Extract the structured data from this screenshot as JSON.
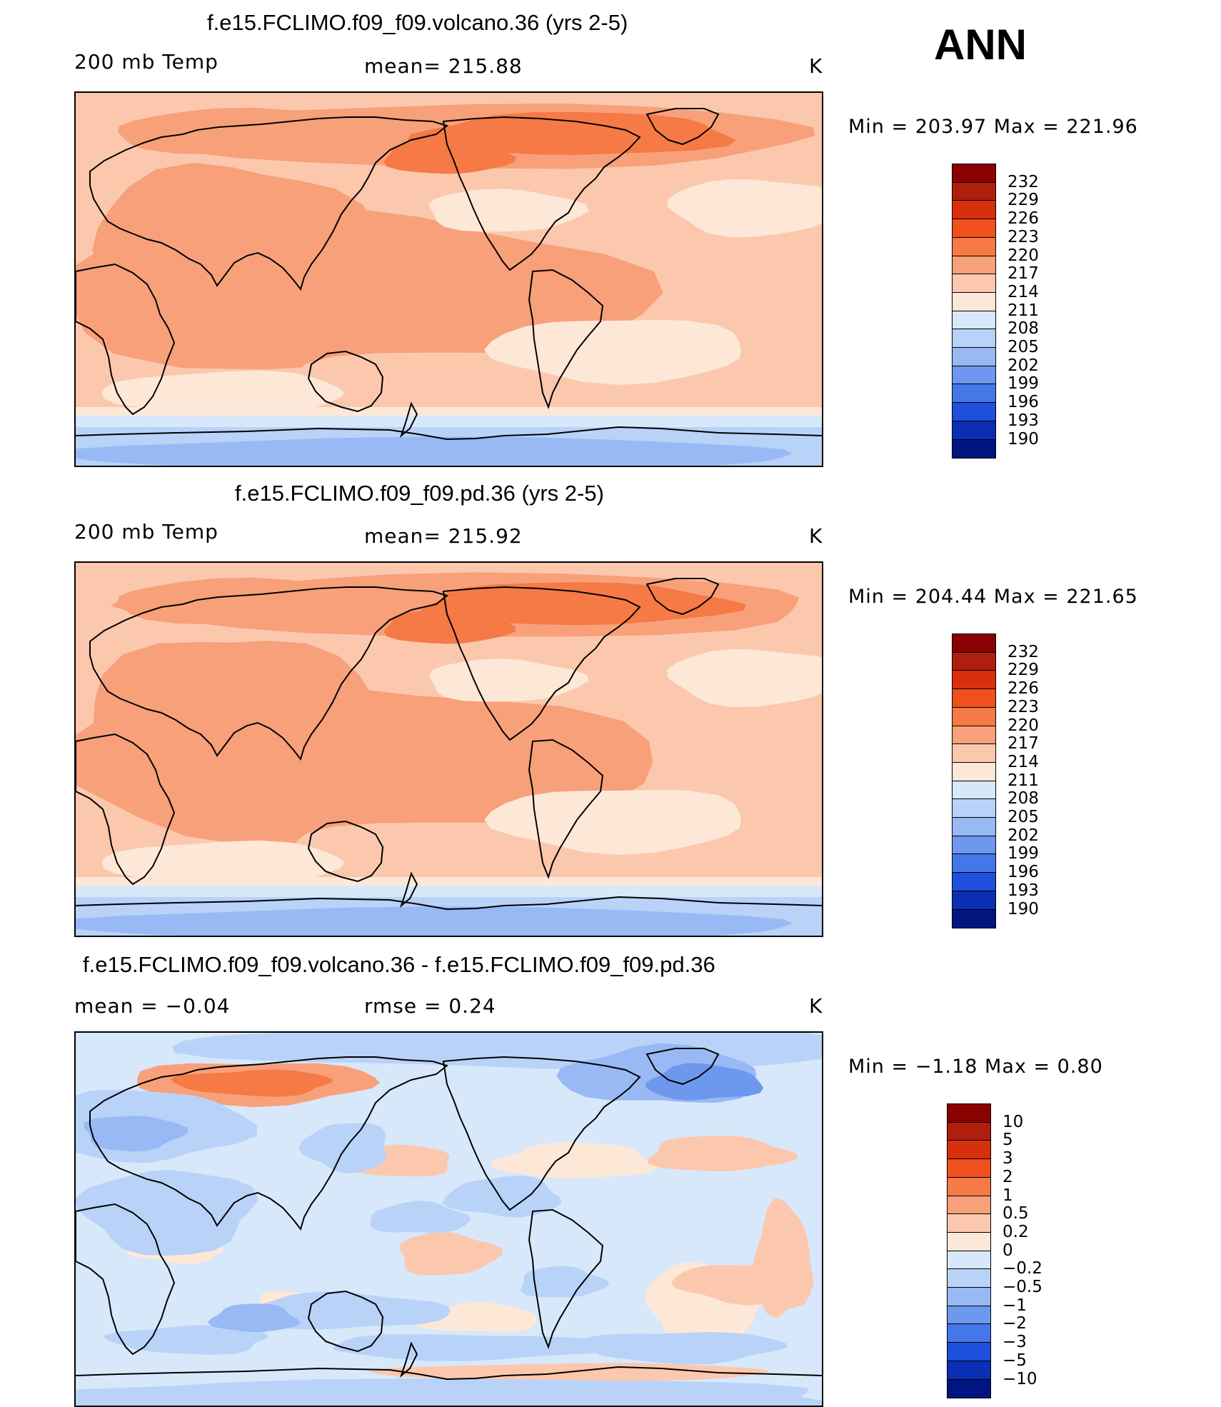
{
  "season": "ANN",
  "panels": [
    {
      "title": "f.e15.FCLIMO.f09_f09.volcano.36 (yrs 2-5)",
      "left_label": "200 mb Temp",
      "center_label": "mean= 215.88",
      "units": "K",
      "minmax": "Min  =  203.97  Max  =  221.96",
      "scale": "abs"
    },
    {
      "title": "f.e15.FCLIMO.f09_f09.pd.36 (yrs 2-5)",
      "left_label": "200 mb Temp",
      "center_label": "mean= 215.92",
      "units": "K",
      "minmax": "Min  =  204.44  Max  =  221.65",
      "scale": "abs"
    },
    {
      "title": "f.e15.FCLIMO.f09_f09.volcano.36 - f.e15.FCLIMO.f09_f09.pd.36",
      "left_label": "mean  =    −0.04",
      "center_label": "rmse  =     0.24",
      "units": "K",
      "minmax": "Min  =    −1.18  Max  =     0.80",
      "scale": "diff"
    }
  ],
  "scales": {
    "abs": {
      "labels": [
        "232",
        "229",
        "226",
        "223",
        "220",
        "217",
        "214",
        "211",
        "208",
        "205",
        "202",
        "199",
        "196",
        "193",
        "190"
      ],
      "colors": [
        "#8b0000",
        "#b01e0e",
        "#d8300f",
        "#f0501e",
        "#f57a45",
        "#f8a07a",
        "#fbc8ae",
        "#fde8d8",
        "#d8e8fb",
        "#b9d2f8",
        "#98b9f4",
        "#6e97ee",
        "#4477e8",
        "#1e50dc",
        "#0a2fb4",
        "#001580"
      ]
    },
    "diff": {
      "labels": [
        "10",
        "5",
        "3",
        "2",
        "1",
        "0.5",
        "0.2",
        "0",
        "−0.2",
        "−0.5",
        "−1",
        "−2",
        "−3",
        "−5",
        "−10"
      ],
      "colors": [
        "#8b0000",
        "#b01e0e",
        "#d8300f",
        "#f0501e",
        "#f57a45",
        "#f8a07a",
        "#fbc8ae",
        "#fde8d8",
        "#d8e8fb",
        "#b9d2f8",
        "#98b9f4",
        "#6e97ee",
        "#4477e8",
        "#1e50dc",
        "#0a2fb4",
        "#001580"
      ]
    }
  }
}
